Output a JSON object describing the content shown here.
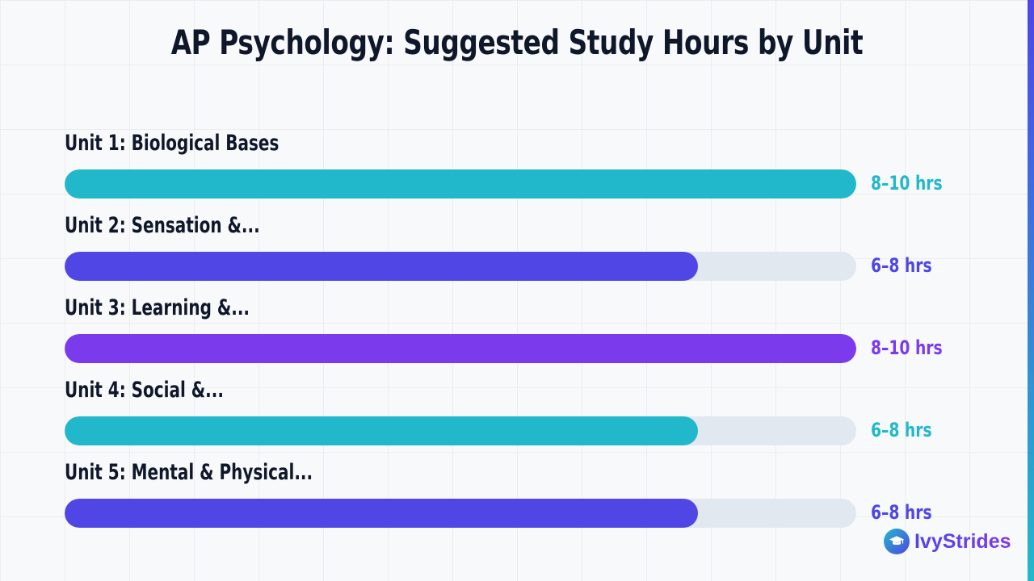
{
  "chart_data": {
    "type": "bar",
    "orientation": "horizontal",
    "title": "AP Psychology: Suggested Study Hours by Unit",
    "xlabel": "",
    "ylabel": "",
    "grid": true,
    "legend": "none",
    "value_unit": "hrs",
    "categories": [
      "Unit 1: Biological Bases",
      "Unit 2: Sensation &...",
      "Unit 3: Learning &...",
      "Unit 4: Social &...",
      "Unit 5: Mental & Physical..."
    ],
    "values": [
      10,
      8,
      10,
      8,
      8
    ],
    "value_labels": [
      "8–10 hrs",
      "6–8 hrs",
      "8–10 hrs",
      "6–8 hrs",
      "6–8 hrs"
    ],
    "max_value": 10,
    "colors": [
      "#22b8cb",
      "#4f46e5",
      "#7c3aed",
      "#22b8cb",
      "#4f46e5"
    ],
    "track_color": "#e2e8f0"
  },
  "brand": {
    "name": "IvyStrides",
    "icon": "graduation-cap-icon"
  },
  "accent_colors": {
    "title": "#0f172a",
    "brand_gradient_start": "#4f46e5",
    "brand_gradient_end": "#7c3aed"
  }
}
